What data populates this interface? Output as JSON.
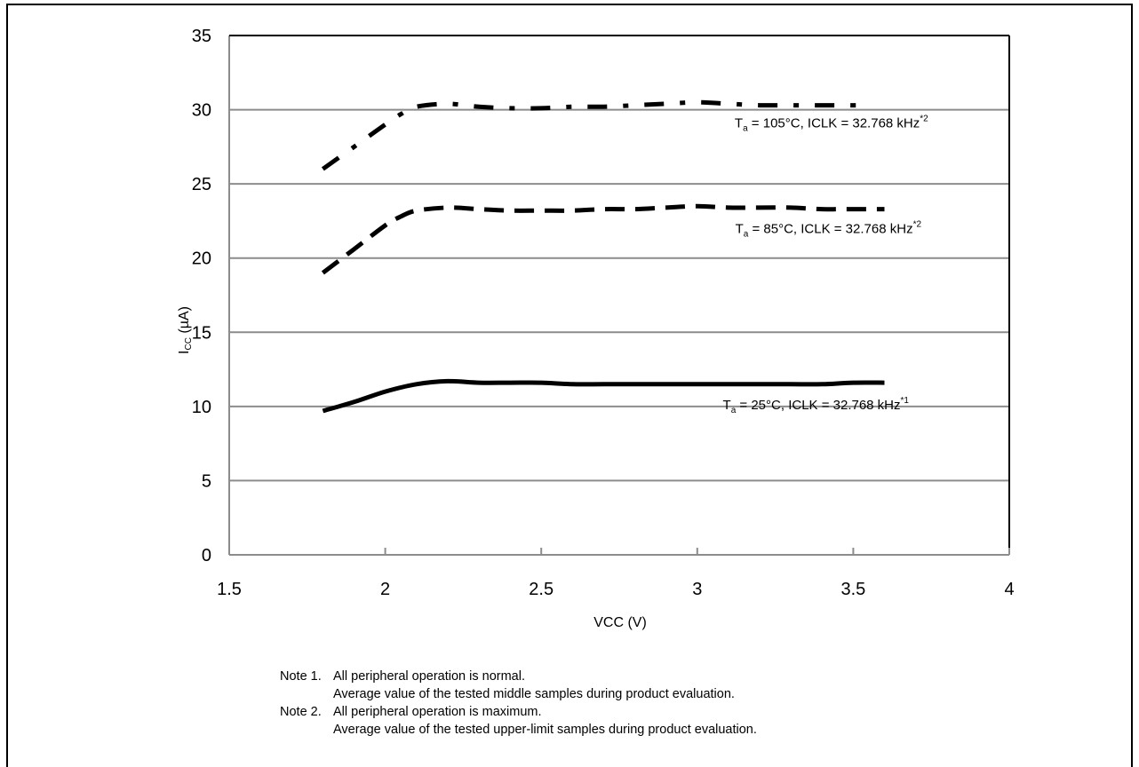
{
  "chart_data": {
    "type": "line",
    "xlabel": "VCC (V)",
    "ylabel": {
      "main": "I",
      "sub": "CC",
      "rest": " (µA)"
    },
    "xlim": [
      1.5,
      4
    ],
    "ylim": [
      0,
      35
    ],
    "x_ticks": [
      1.5,
      2,
      2.5,
      3,
      3.5,
      4
    ],
    "x_tick_labels": [
      "1.5",
      "2",
      "2.5",
      "3",
      "3.5",
      "4"
    ],
    "y_ticks": [
      0,
      5,
      10,
      15,
      20,
      25,
      30,
      35
    ],
    "y_tick_labels": [
      "0",
      "5",
      "10",
      "15",
      "20",
      "25",
      "30",
      "35"
    ],
    "grid": "horizontal",
    "series": [
      {
        "label": {
          "prefix": "T",
          "sub": "a",
          "text": " = 105°C, ICLK = 32.768 kHz",
          "sup": "*2"
        },
        "style": "dashdot",
        "color": "#000000",
        "x": [
          1.8,
          1.9,
          2.0,
          2.05,
          2.1,
          2.2,
          2.3,
          2.4,
          2.5,
          2.6,
          2.7,
          2.8,
          2.9,
          3.0,
          3.1,
          3.2,
          3.3,
          3.4,
          3.5,
          3.55
        ],
        "y": [
          26.0,
          27.5,
          29.0,
          29.7,
          30.2,
          30.4,
          30.2,
          30.1,
          30.1,
          30.2,
          30.2,
          30.3,
          30.4,
          30.5,
          30.4,
          30.3,
          30.3,
          30.3,
          30.3,
          30.3
        ]
      },
      {
        "label": {
          "prefix": "T",
          "sub": "a",
          "text": " = 85°C, ICLK = 32.768 kHz",
          "sup": "*2"
        },
        "style": "dashed",
        "color": "#000000",
        "x": [
          1.8,
          1.9,
          2.0,
          2.05,
          2.1,
          2.2,
          2.3,
          2.4,
          2.5,
          2.6,
          2.7,
          2.8,
          2.9,
          3.0,
          3.1,
          3.2,
          3.3,
          3.4,
          3.5,
          3.6
        ],
        "y": [
          19.0,
          20.6,
          22.2,
          22.8,
          23.2,
          23.4,
          23.3,
          23.2,
          23.2,
          23.2,
          23.3,
          23.3,
          23.4,
          23.5,
          23.4,
          23.4,
          23.4,
          23.3,
          23.3,
          23.3
        ]
      },
      {
        "label": {
          "prefix": "T",
          "sub": "a",
          "text": " = 25°C, ICLK = 32.768 kHz",
          "sup": "*1"
        },
        "style": "solid",
        "color": "#000000",
        "x": [
          1.8,
          1.9,
          2.0,
          2.1,
          2.2,
          2.3,
          2.4,
          2.5,
          2.6,
          2.7,
          2.8,
          2.9,
          3.0,
          3.1,
          3.2,
          3.3,
          3.4,
          3.5,
          3.6
        ],
        "y": [
          9.7,
          10.3,
          11.0,
          11.5,
          11.7,
          11.6,
          11.6,
          11.6,
          11.5,
          11.5,
          11.5,
          11.5,
          11.5,
          11.5,
          11.5,
          11.5,
          11.5,
          11.6,
          11.6
        ]
      }
    ]
  },
  "notes": [
    {
      "label": "Note 1.",
      "lines": [
        "All peripheral operation is normal.",
        "Average value of the tested middle samples during product evaluation."
      ]
    },
    {
      "label": "Note 2.",
      "lines": [
        "All peripheral operation is maximum.",
        "Average value of the tested upper-limit samples during product evaluation."
      ]
    }
  ]
}
